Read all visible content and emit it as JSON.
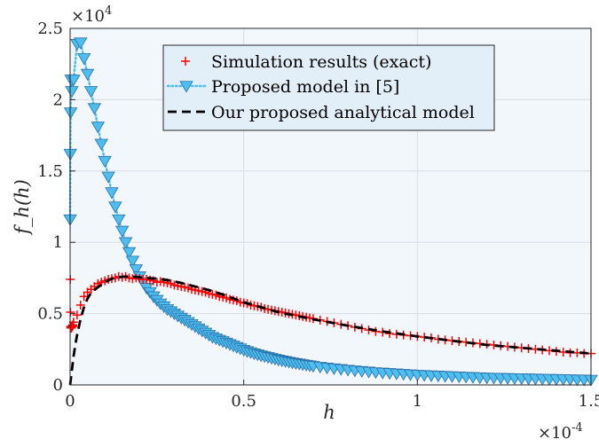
{
  "chart_data": {
    "type": "line",
    "xlabel": "h",
    "ylabel": "f_h(h)",
    "x_multiplier": "×10",
    "x_exponent": "-4",
    "y_multiplier": "×10",
    "y_exponent": "4",
    "xlim": [
      0,
      1.5
    ],
    "ylim": [
      0,
      2.5
    ],
    "xticks": [
      "0",
      "0.5",
      "1",
      "1.5"
    ],
    "yticks": [
      "0",
      "0.5",
      "1",
      "1.5",
      "2",
      "2.5"
    ],
    "grid": true,
    "legend_position": "top-right",
    "colors": {
      "sim": "#ff0000",
      "prev": "#4dbeee",
      "prev_marker_edge": "#2a6fa8",
      "ours": "#000000",
      "plot_bg": "#f2f7fc",
      "legend_bg": "#e2eef8"
    },
    "series": [
      {
        "name": "Simulation results (exact)",
        "style": "marker-plus",
        "x": [
          0.0005,
          0.001,
          0.0015,
          0.002,
          0.0025,
          0.003,
          0.0035,
          0.004,
          0.0045,
          0.005,
          0.0055,
          0.006,
          0.0065,
          0.007,
          0.0075,
          0.008,
          0.01,
          0.02,
          0.03,
          0.04,
          0.05,
          0.06,
          0.07,
          0.08,
          0.09,
          0.1,
          0.11,
          0.12,
          0.13,
          0.14,
          0.15,
          0.16,
          0.17,
          0.18,
          0.19,
          0.2,
          0.21,
          0.22,
          0.23,
          0.24,
          0.25,
          0.26,
          0.27,
          0.28,
          0.29,
          0.3,
          0.31,
          0.32,
          0.33,
          0.34,
          0.35,
          0.36,
          0.37,
          0.38,
          0.39,
          0.4,
          0.41,
          0.42,
          0.43,
          0.44,
          0.45,
          0.46,
          0.47,
          0.48,
          0.49,
          0.5,
          0.51,
          0.52,
          0.53,
          0.54,
          0.55,
          0.56,
          0.57,
          0.58,
          0.59,
          0.6,
          0.61,
          0.62,
          0.63,
          0.64,
          0.65,
          0.66,
          0.67,
          0.68,
          0.69,
          0.7,
          0.72,
          0.74,
          0.76,
          0.78,
          0.8,
          0.82,
          0.84,
          0.86,
          0.88,
          0.9,
          0.92,
          0.94,
          0.96,
          0.98,
          1.0,
          1.02,
          1.04,
          1.06,
          1.08,
          1.1,
          1.12,
          1.14,
          1.16,
          1.18,
          1.2,
          1.22,
          1.24,
          1.26,
          1.28,
          1.3,
          1.32,
          1.34,
          1.36,
          1.38,
          1.4,
          1.42,
          1.44,
          1.46,
          1.48,
          1.5
        ],
        "y": [
          0.74,
          0.51,
          0.41,
          0.4,
          0.4,
          0.4,
          0.4,
          0.4,
          0.41,
          0.41,
          0.41,
          0.41,
          0.41,
          0.41,
          0.42,
          0.42,
          0.44,
          0.49,
          0.56,
          0.62,
          0.65,
          0.67,
          0.69,
          0.71,
          0.72,
          0.73,
          0.74,
          0.745,
          0.75,
          0.76,
          0.755,
          0.76,
          0.75,
          0.745,
          0.75,
          0.745,
          0.74,
          0.74,
          0.735,
          0.73,
          0.72,
          0.725,
          0.72,
          0.715,
          0.71,
          0.7,
          0.695,
          0.69,
          0.685,
          0.68,
          0.67,
          0.665,
          0.66,
          0.655,
          0.65,
          0.64,
          0.635,
          0.63,
          0.62,
          0.615,
          0.61,
          0.6,
          0.595,
          0.59,
          0.58,
          0.575,
          0.57,
          0.56,
          0.555,
          0.55,
          0.545,
          0.535,
          0.53,
          0.525,
          0.52,
          0.515,
          0.51,
          0.505,
          0.5,
          0.495,
          0.49,
          0.485,
          0.48,
          0.475,
          0.47,
          0.465,
          0.455,
          0.445,
          0.435,
          0.425,
          0.415,
          0.405,
          0.395,
          0.385,
          0.375,
          0.37,
          0.36,
          0.355,
          0.35,
          0.345,
          0.34,
          0.335,
          0.33,
          0.32,
          0.315,
          0.31,
          0.305,
          0.3,
          0.295,
          0.29,
          0.285,
          0.28,
          0.275,
          0.27,
          0.265,
          0.26,
          0.255,
          0.25,
          0.245,
          0.24,
          0.235,
          0.23,
          0.225,
          0.225,
          0.22,
          0.22
        ]
      },
      {
        "name": "Proposed model in [5]",
        "style": "dotted-triangle",
        "x": [
          0.0,
          0.0005,
          0.0015,
          0.003,
          0.005,
          0.01,
          0.02,
          0.03,
          0.04,
          0.05,
          0.06,
          0.07,
          0.08,
          0.09,
          0.1,
          0.11,
          0.12,
          0.13,
          0.14,
          0.15,
          0.16,
          0.17,
          0.18,
          0.19,
          0.2,
          0.21,
          0.22,
          0.23,
          0.24,
          0.25,
          0.26,
          0.27,
          0.28,
          0.29,
          0.3,
          0.31,
          0.32,
          0.33,
          0.34,
          0.35,
          0.36,
          0.37,
          0.38,
          0.39,
          0.4,
          0.41,
          0.42,
          0.43,
          0.44,
          0.45,
          0.46,
          0.47,
          0.48,
          0.49,
          0.5,
          0.51,
          0.52,
          0.53,
          0.54,
          0.55,
          0.56,
          0.57,
          0.58,
          0.59,
          0.6,
          0.61,
          0.62,
          0.63,
          0.64,
          0.65,
          0.66,
          0.67,
          0.68,
          0.69,
          0.7,
          0.72,
          0.74,
          0.76,
          0.78,
          0.8,
          0.82,
          0.84,
          0.86,
          0.88,
          0.9,
          0.92,
          0.94,
          0.96,
          0.98,
          1.0,
          1.02,
          1.04,
          1.06,
          1.08,
          1.1,
          1.12,
          1.14,
          1.16,
          1.18,
          1.2,
          1.22,
          1.24,
          1.26,
          1.28,
          1.3,
          1.32,
          1.34,
          1.36,
          1.38,
          1.4,
          1.42,
          1.44,
          1.46,
          1.48,
          1.5
        ],
        "y": [
          1.16,
          1.62,
          1.91,
          2.14,
          2.06,
          2.14,
          2.39,
          2.4,
          2.29,
          2.18,
          2.06,
          1.94,
          1.81,
          1.69,
          1.57,
          1.46,
          1.35,
          1.25,
          1.16,
          1.08,
          1.0,
          0.93,
          0.87,
          0.81,
          0.76,
          0.72,
          0.68,
          0.65,
          0.62,
          0.595,
          0.57,
          0.55,
          0.53,
          0.515,
          0.5,
          0.485,
          0.47,
          0.455,
          0.44,
          0.425,
          0.41,
          0.395,
          0.38,
          0.365,
          0.35,
          0.335,
          0.325,
          0.315,
          0.305,
          0.295,
          0.285,
          0.275,
          0.265,
          0.255,
          0.245,
          0.235,
          0.228,
          0.22,
          0.213,
          0.206,
          0.2,
          0.194,
          0.188,
          0.182,
          0.176,
          0.171,
          0.166,
          0.161,
          0.156,
          0.152,
          0.148,
          0.144,
          0.14,
          0.136,
          0.132,
          0.126,
          0.12,
          0.115,
          0.11,
          0.105,
          0.1,
          0.096,
          0.092,
          0.088,
          0.085,
          0.082,
          0.079,
          0.076,
          0.073,
          0.07,
          0.068,
          0.066,
          0.064,
          0.062,
          0.06,
          0.058,
          0.056,
          0.054,
          0.052,
          0.05,
          0.049,
          0.048,
          0.047,
          0.046,
          0.045,
          0.044,
          0.043,
          0.042,
          0.041,
          0.04,
          0.039,
          0.038,
          0.037,
          0.036,
          0.035
        ]
      },
      {
        "name": "Our proposed analytical model",
        "style": "dashed",
        "x": [
          0.0,
          0.005,
          0.01,
          0.015,
          0.02,
          0.03,
          0.04,
          0.05,
          0.06,
          0.08,
          0.1,
          0.12,
          0.14,
          0.16,
          0.18,
          0.2,
          0.22,
          0.25,
          0.28,
          0.32,
          0.36,
          0.4,
          0.45,
          0.5,
          0.55,
          0.6,
          0.7,
          0.8,
          0.9,
          1.0,
          1.1,
          1.2,
          1.3,
          1.4,
          1.5
        ],
        "y": [
          0.0,
          0.1,
          0.2,
          0.28,
          0.35,
          0.46,
          0.545,
          0.605,
          0.645,
          0.685,
          0.72,
          0.745,
          0.755,
          0.76,
          0.76,
          0.755,
          0.75,
          0.745,
          0.735,
          0.715,
          0.69,
          0.665,
          0.625,
          0.58,
          0.545,
          0.51,
          0.46,
          0.415,
          0.375,
          0.34,
          0.31,
          0.28,
          0.26,
          0.24,
          0.22
        ]
      }
    ]
  }
}
